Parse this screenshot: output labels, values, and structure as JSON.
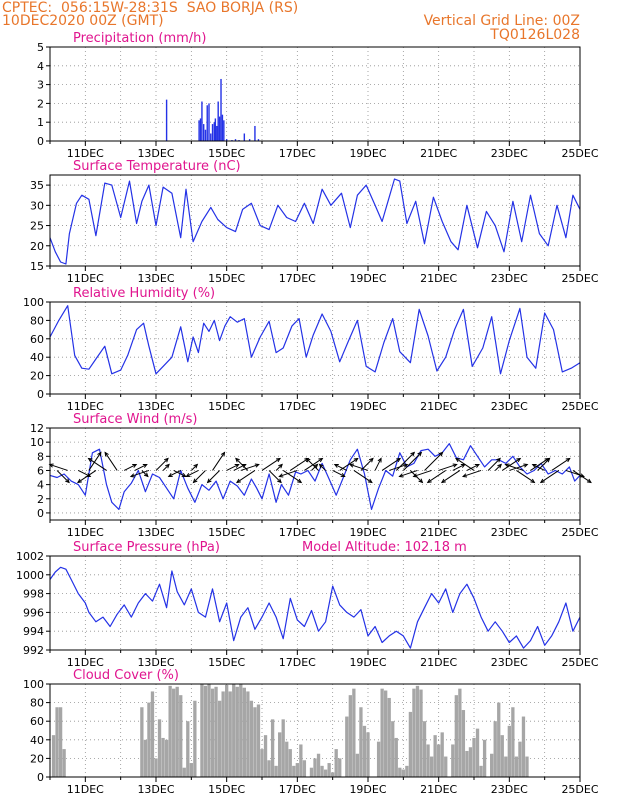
{
  "header": {
    "line1": "CPTEC:  056:15W-28:31S  SAO BORJA (RS)",
    "line2": "10DEC2020 00Z (GMT)",
    "grid_note": "Vertical Grid Line: 00Z",
    "code": "TQ0126L028"
  },
  "colors": {
    "header": "#e8762b",
    "title": "#e0158f",
    "series": "#2432e6",
    "cloud": "#a6a6a6"
  },
  "x_axis": {
    "start_day": 10,
    "end_day": 25,
    "tick_days": [
      11,
      13,
      15,
      17,
      19,
      21,
      23,
      25
    ],
    "tick_labels": [
      "11DEC",
      "13DEC",
      "15DEC",
      "17DEC",
      "19DEC",
      "21DEC",
      "23DEC",
      "25DEC"
    ]
  },
  "chart_data": [
    {
      "type": "bar",
      "title": "Precipitation (mm/h)",
      "ylim": [
        0,
        5
      ],
      "yticks": [
        0,
        1,
        2,
        3,
        4,
        5
      ],
      "grid": true,
      "x": [
        13.3,
        14.22,
        14.26,
        14.3,
        14.35,
        14.4,
        14.45,
        14.5,
        14.55,
        14.6,
        14.65,
        14.68,
        14.72,
        14.76,
        14.8,
        14.84,
        14.88,
        14.92,
        15.0,
        15.15,
        15.25,
        15.35,
        15.5,
        15.65,
        15.8,
        15.9
      ],
      "values": [
        2.2,
        1.1,
        1.2,
        2.1,
        0.9,
        0.6,
        1.9,
        2.0,
        0.4,
        0.9,
        1.0,
        1.2,
        0.8,
        2.1,
        1.3,
        3.3,
        1.4,
        1.1,
        0.1,
        0.05,
        0.1,
        0.05,
        0.4,
        0.1,
        0.8,
        0.1
      ]
    },
    {
      "type": "line",
      "title": "Surface Temperature (nC)",
      "ylim": [
        15,
        37.5
      ],
      "yticks": [
        15,
        20,
        25,
        30,
        35
      ],
      "grid": true,
      "x": [
        10.0,
        10.15,
        10.3,
        10.45,
        10.55,
        10.75,
        10.9,
        11.1,
        11.3,
        11.55,
        11.75,
        12.0,
        12.25,
        12.45,
        12.6,
        12.8,
        13.0,
        13.2,
        13.45,
        13.7,
        13.85,
        14.05,
        14.3,
        14.55,
        14.75,
        15.0,
        15.25,
        15.45,
        15.7,
        15.95,
        16.2,
        16.45,
        16.7,
        16.95,
        17.2,
        17.45,
        17.7,
        17.95,
        18.25,
        18.5,
        18.7,
        18.95,
        19.2,
        19.4,
        19.6,
        19.75,
        19.9,
        20.1,
        20.35,
        20.6,
        20.85,
        21.1,
        21.35,
        21.55,
        21.8,
        22.1,
        22.35,
        22.6,
        22.85,
        23.1,
        23.35,
        23.6,
        23.85,
        24.1,
        24.35,
        24.6,
        24.8,
        25.0
      ],
      "values": [
        22,
        18.5,
        16,
        15.5,
        23,
        30.5,
        32.5,
        31.5,
        22.5,
        35.5,
        35,
        27,
        36,
        25.5,
        31,
        35,
        25,
        34.5,
        33,
        22,
        34,
        21,
        26,
        29.5,
        26.5,
        24.5,
        23.5,
        29,
        30.5,
        25,
        24,
        30,
        27,
        26,
        30.5,
        25.5,
        34,
        30,
        33,
        24.5,
        32.5,
        35,
        30,
        26,
        32,
        36.5,
        36,
        25.5,
        31,
        20.5,
        32,
        26,
        21,
        19,
        30,
        19.5,
        28.5,
        25,
        18.5,
        31,
        21,
        32.5,
        23,
        20,
        30,
        22,
        32.5,
        29
      ]
    },
    {
      "type": "line",
      "title": "Relative Humidity (%)",
      "ylim": [
        0,
        100
      ],
      "yticks": [
        0,
        20,
        40,
        60,
        80,
        100
      ],
      "grid": true,
      "x": [
        10.0,
        10.25,
        10.5,
        10.7,
        10.9,
        11.1,
        11.3,
        11.55,
        11.75,
        12.0,
        12.2,
        12.45,
        12.65,
        12.8,
        13.0,
        13.2,
        13.45,
        13.7,
        13.9,
        14.05,
        14.2,
        14.35,
        14.5,
        14.65,
        14.8,
        14.95,
        15.1,
        15.3,
        15.5,
        15.7,
        15.95,
        16.2,
        16.4,
        16.6,
        16.85,
        17.05,
        17.25,
        17.45,
        17.7,
        17.95,
        18.2,
        18.45,
        18.7,
        18.95,
        19.2,
        19.45,
        19.7,
        19.9,
        20.2,
        20.45,
        20.7,
        20.95,
        21.2,
        21.45,
        21.7,
        21.95,
        22.25,
        22.5,
        22.75,
        23.0,
        23.3,
        23.5,
        23.75,
        24.0,
        24.25,
        24.5,
        24.75,
        25.0
      ],
      "values": [
        62,
        80,
        96,
        42,
        28,
        27,
        38,
        52,
        22,
        26,
        42,
        70,
        77,
        52,
        22,
        30,
        40,
        73,
        35,
        62,
        45,
        77,
        68,
        80,
        58,
        74,
        84,
        78,
        82,
        40,
        62,
        79,
        45,
        50,
        74,
        82,
        40,
        64,
        87,
        68,
        35,
        58,
        80,
        30,
        24,
        56,
        82,
        46,
        34,
        92,
        63,
        25,
        40,
        70,
        92,
        30,
        50,
        84,
        22,
        58,
        93,
        40,
        28,
        88,
        70,
        24,
        28,
        34
      ]
    },
    {
      "type": "line",
      "title": "Surface Wind (m/s)",
      "ylim": [
        -1,
        12
      ],
      "yticks": [
        0,
        2,
        4,
        6,
        8,
        10,
        12
      ],
      "grid": true,
      "x": [
        10.0,
        10.2,
        10.4,
        10.6,
        10.8,
        11.0,
        11.2,
        11.4,
        11.6,
        11.75,
        11.95,
        12.1,
        12.3,
        12.5,
        12.7,
        12.9,
        13.1,
        13.3,
        13.5,
        13.7,
        13.9,
        14.1,
        14.3,
        14.5,
        14.7,
        14.9,
        15.1,
        15.3,
        15.5,
        15.7,
        15.85,
        16.0,
        16.2,
        16.4,
        16.55,
        16.75,
        16.95,
        17.1,
        17.3,
        17.5,
        17.7,
        17.9,
        18.1,
        18.3,
        18.5,
        18.7,
        18.9,
        19.1,
        19.3,
        19.5,
        19.7,
        19.9,
        20.1,
        20.3,
        20.5,
        20.7,
        20.9,
        21.1,
        21.3,
        21.5,
        21.7,
        21.9,
        22.1,
        22.3,
        22.5,
        22.7,
        22.9,
        23.1,
        23.3,
        23.5,
        23.7,
        23.9,
        24.1,
        24.3,
        24.5,
        24.7,
        24.85,
        25.0
      ],
      "values": [
        5.3,
        5.0,
        5.5,
        4.5,
        4.0,
        2.5,
        8.5,
        9.0,
        4.0,
        1.5,
        0.5,
        3.0,
        4.2,
        6.0,
        3.0,
        5.5,
        5.0,
        3.5,
        2.0,
        6.0,
        3.5,
        1.5,
        4.0,
        3.2,
        4.5,
        2.0,
        4.5,
        3.8,
        2.5,
        4.8,
        3.5,
        2.0,
        5.5,
        1.5,
        4.0,
        2.5,
        5.8,
        5.5,
        6.0,
        4.5,
        7.0,
        4.8,
        2.5,
        5.0,
        7.5,
        9.0,
        5.5,
        0.5,
        3.5,
        6.0,
        5.2,
        8.5,
        6.5,
        7.0,
        8.8,
        9.0,
        8.0,
        8.5,
        9.8,
        7.8,
        7.5,
        9.5,
        8.0,
        6.5,
        7.5,
        7.5,
        7.0,
        8.0,
        6.5,
        5.5,
        6.0,
        7.0,
        5.5,
        6.0,
        5.5,
        6.5,
        4.5,
        5.3
      ]
    },
    {
      "type": "line",
      "title": "Surface Pressure (hPa)",
      "annotation": "Model Altitude: 102.18 m",
      "ylim": [
        992,
        1002
      ],
      "yticks": [
        992,
        994,
        996,
        998,
        1000,
        1002
      ],
      "grid": true,
      "x": [
        10.0,
        10.15,
        10.3,
        10.45,
        10.6,
        10.8,
        11.0,
        11.1,
        11.3,
        11.5,
        11.7,
        11.9,
        12.1,
        12.3,
        12.5,
        12.7,
        12.9,
        13.1,
        13.3,
        13.45,
        13.6,
        13.8,
        14.0,
        14.2,
        14.4,
        14.6,
        14.8,
        15.0,
        15.2,
        15.4,
        15.6,
        15.8,
        16.0,
        16.2,
        16.4,
        16.6,
        16.8,
        17.0,
        17.2,
        17.4,
        17.6,
        17.8,
        18.0,
        18.2,
        18.4,
        18.6,
        18.8,
        19.0,
        19.2,
        19.4,
        19.6,
        19.8,
        20.0,
        20.2,
        20.4,
        20.6,
        20.8,
        21.0,
        21.2,
        21.4,
        21.6,
        21.8,
        22.0,
        22.2,
        22.4,
        22.6,
        22.8,
        23.0,
        23.2,
        23.4,
        23.6,
        23.8,
        24.0,
        24.2,
        24.4,
        24.6,
        24.8,
        25.0
      ],
      "values": [
        999.5,
        1000.3,
        1000.8,
        1000.6,
        999.5,
        998.0,
        997.0,
        996.0,
        995.0,
        995.5,
        994.5,
        995.8,
        996.8,
        995.5,
        997.0,
        998.0,
        997.2,
        999.0,
        996.5,
        1000.4,
        998.2,
        996.8,
        998.5,
        996.0,
        995.5,
        998.5,
        995.0,
        997.0,
        993.0,
        995.5,
        996.5,
        994.2,
        995.5,
        997.0,
        995.5,
        993.2,
        997.5,
        995.2,
        994.5,
        996.2,
        994.0,
        995.0,
        998.8,
        996.8,
        996.0,
        995.5,
        996.3,
        993.5,
        994.5,
        992.8,
        993.5,
        994.0,
        993.5,
        992.2,
        995.0,
        996.5,
        998.0,
        997.0,
        998.5,
        996.0,
        998.0,
        999.0,
        997.5,
        995.5,
        994.0,
        995.0,
        994.0,
        992.8,
        993.5,
        992.2,
        993.0,
        994.5,
        992.5,
        993.5,
        995.0,
        997.0,
        994.0,
        995.5
      ]
    },
    {
      "type": "bar",
      "title": "Cloud Cover (%)",
      "ylim": [
        0,
        100
      ],
      "yticks": [
        0,
        20,
        40,
        60,
        80,
        100
      ],
      "grid": true,
      "x": [
        10.1,
        10.2,
        10.3,
        10.4,
        12.6,
        12.7,
        12.8,
        12.9,
        13.0,
        13.1,
        13.2,
        13.3,
        13.4,
        13.5,
        13.6,
        13.7,
        13.8,
        13.9,
        14.0,
        14.1,
        14.3,
        14.4,
        14.5,
        14.6,
        14.7,
        14.8,
        14.9,
        15.0,
        15.1,
        15.2,
        15.3,
        15.4,
        15.5,
        15.6,
        15.7,
        15.8,
        15.9,
        16.0,
        16.1,
        16.2,
        16.3,
        16.4,
        16.5,
        16.6,
        16.7,
        16.8,
        16.9,
        17.0,
        17.1,
        17.2,
        17.4,
        17.5,
        17.6,
        17.7,
        17.8,
        17.9,
        18.0,
        18.1,
        18.2,
        18.4,
        18.5,
        18.6,
        18.7,
        18.8,
        18.9,
        19.0,
        19.3,
        19.4,
        19.5,
        19.6,
        19.7,
        19.8,
        19.9,
        20.0,
        20.1,
        20.2,
        20.3,
        20.4,
        20.5,
        20.6,
        20.7,
        20.8,
        20.9,
        21.0,
        21.1,
        21.2,
        21.4,
        21.5,
        21.6,
        21.7,
        21.8,
        21.9,
        22.0,
        22.1,
        22.2,
        22.3,
        22.5,
        22.6,
        22.7,
        22.8,
        22.9,
        23.0,
        23.1,
        23.2,
        23.3,
        23.4,
        23.5
      ],
      "values": [
        45,
        75,
        75,
        30,
        75,
        40,
        80,
        92,
        20,
        62,
        42,
        40,
        98,
        95,
        97,
        88,
        10,
        60,
        15,
        82,
        100,
        98,
        100,
        95,
        97,
        82,
        92,
        99,
        92,
        100,
        97,
        100,
        96,
        92,
        82,
        75,
        78,
        30,
        45,
        18,
        62,
        12,
        48,
        62,
        38,
        30,
        12,
        15,
        35,
        18,
        10,
        20,
        25,
        12,
        8,
        15,
        5,
        30,
        20,
        65,
        88,
        95,
        25,
        75,
        55,
        48,
        38,
        95,
        93,
        85,
        60,
        42,
        10,
        8,
        12,
        70,
        95,
        98,
        94,
        60,
        35,
        22,
        45,
        35,
        48,
        22,
        35,
        88,
        95,
        72,
        28,
        32,
        42,
        52,
        12,
        40,
        25,
        60,
        80,
        45,
        22,
        55,
        75,
        22,
        38,
        65,
        22
      ]
    }
  ],
  "wind_vectors": {
    "x": [
      10.2,
      10.5,
      10.8,
      11.1,
      11.3,
      11.6,
      11.9,
      12.1,
      12.4,
      12.6,
      12.8,
      13.0,
      13.2,
      13.5,
      13.7,
      14.0,
      14.2,
      14.4,
      14.6,
      14.8,
      15.0,
      15.2,
      15.4,
      15.6,
      15.8,
      16.0,
      16.2,
      16.4,
      16.6,
      16.8,
      17.0,
      17.2,
      17.4,
      17.6,
      17.8,
      18.0,
      18.2,
      18.4,
      18.6,
      18.8,
      19.0,
      19.2,
      19.4,
      19.6,
      19.8,
      20.0,
      20.2,
      20.4,
      20.6,
      20.8,
      21.0,
      21.2,
      21.4,
      21.6,
      21.8,
      22.0,
      22.2,
      22.4,
      22.6,
      22.8,
      23.0,
      23.2,
      23.4,
      23.6,
      23.8,
      24.0,
      24.2,
      24.4,
      24.6,
      24.8
    ],
    "u": [
      2,
      -3,
      2,
      2,
      -3,
      -3,
      -2,
      2,
      2,
      1,
      -3,
      2,
      1,
      2,
      -2,
      1,
      -2,
      -2,
      2,
      -2,
      2,
      2,
      3,
      -2,
      -3,
      3,
      2,
      1,
      3,
      3,
      -3,
      3,
      1,
      -2,
      -1,
      2,
      3,
      -2,
      3,
      2,
      -3,
      1,
      3,
      3,
      3,
      3,
      2,
      -3,
      3,
      -3,
      3,
      -3,
      2,
      -3,
      2,
      -3,
      -3,
      2,
      1,
      3,
      3,
      3,
      -3,
      3,
      2,
      -2,
      3,
      -3,
      3,
      3
    ],
    "v": [
      -2,
      1,
      -1,
      3,
      -2,
      2,
      3,
      1,
      1,
      -1,
      -1,
      2,
      1,
      -1,
      -1,
      1,
      -1,
      -2,
      3,
      -2,
      1,
      1,
      1,
      2,
      -2,
      2,
      -2,
      1,
      -2,
      2,
      -1,
      2,
      1,
      2,
      1,
      -1,
      2,
      1,
      -2,
      2,
      1,
      2,
      2,
      1,
      3,
      3,
      -2,
      -1,
      3,
      -1,
      1,
      -2,
      1,
      -2,
      1,
      2,
      -1,
      2,
      1,
      2,
      1,
      -2,
      1,
      2,
      2,
      1,
      2,
      -2,
      -1,
      -2
    ]
  }
}
